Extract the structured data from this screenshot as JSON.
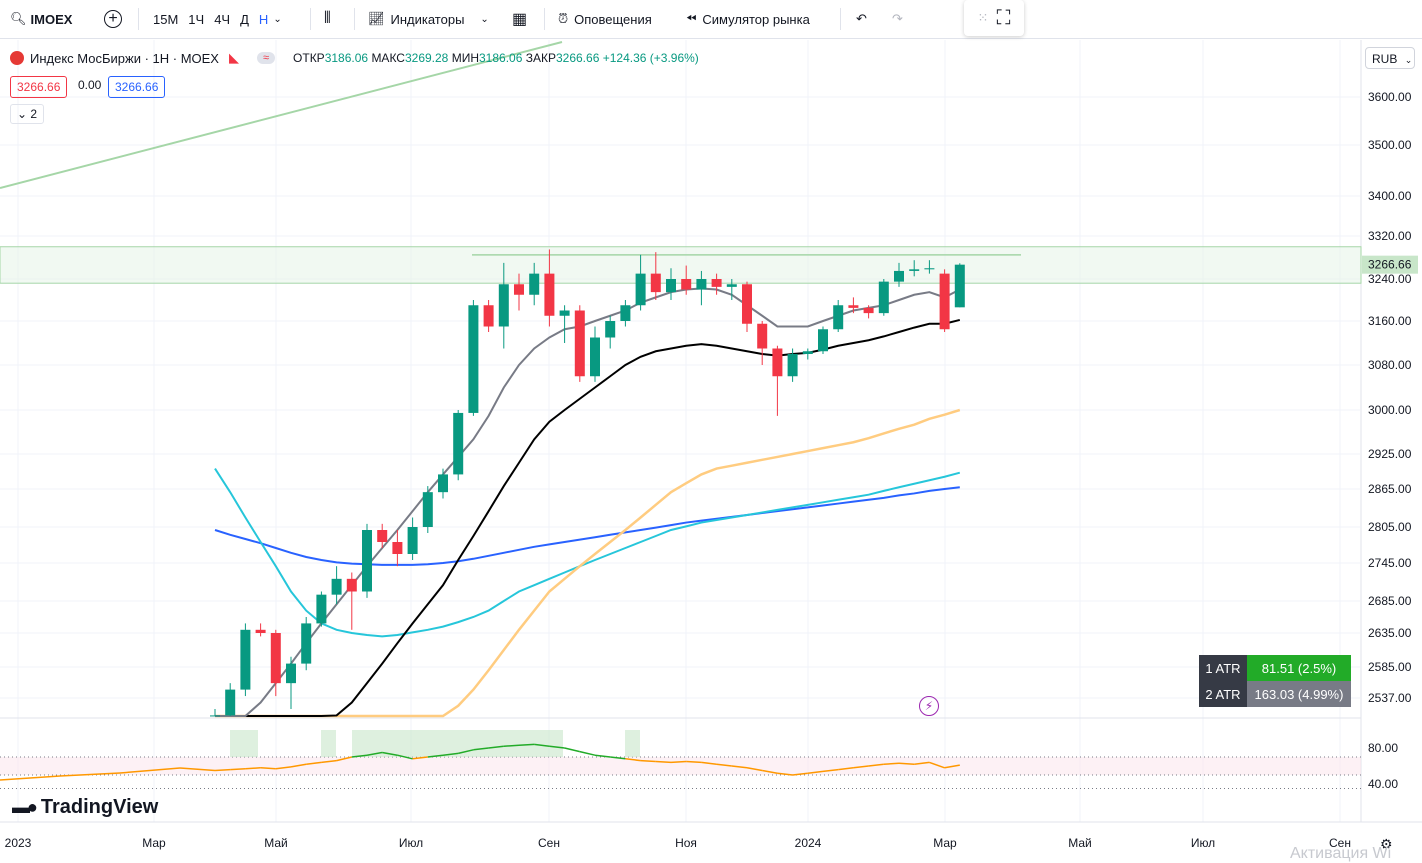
{
  "toolbar": {
    "symbol": "IMOEX",
    "intervals": [
      "15М",
      "1Ч",
      "4Ч",
      "Д",
      "Н"
    ],
    "active_interval": "Н",
    "indicators_label": "Индикаторы",
    "alerts_label": "Оповещения",
    "replay_label": "Симулятор рынка"
  },
  "legend": {
    "title": "Индекс МосБиржи · 1Н · MOEX",
    "open_label": "ОТКР",
    "open": "3186.06",
    "high_label": "МАКС",
    "high": "3269.28",
    "low_label": "МИН",
    "low": "3186.06",
    "close_label": "ЗАКР",
    "close": "3266.66",
    "change": "+124.36 (+3.96%)",
    "sell_price": "3266.66",
    "spread": "0.00",
    "buy_price": "3266.66",
    "indicators_count": "2"
  },
  "currency": "RUB",
  "atr": [
    {
      "label": "1 ATR",
      "value": "81.51 (2.5%)",
      "color": "#22ab28"
    },
    {
      "label": "2 ATR",
      "value": "163.03 (4.99%)",
      "color": "#787b86"
    }
  ],
  "branding": "TradingView",
  "watermark": "Активация Wi",
  "chart_data": {
    "type": "candlestick",
    "y_ticks": [
      "3600.00",
      "3500.00",
      "3400.00",
      "3320.00",
      "3240.00",
      "3160.00",
      "3080.00",
      "3000.00",
      "2925.00",
      "2865.00",
      "2805.00",
      "2745.00",
      "2685.00",
      "2635.00",
      "2585.00",
      "2537.00"
    ],
    "y_tick_values": [
      3600,
      3500,
      3400,
      3320,
      3240,
      3160,
      3080,
      3000,
      2925,
      2865,
      2805,
      2745,
      2685,
      2635,
      2585,
      2537
    ],
    "x_ticks": [
      "2023",
      "Мар",
      "Май",
      "Июл",
      "Сен",
      "Ноя",
      "2024",
      "Мар",
      "Май",
      "Июл",
      "Сен"
    ],
    "last_price_label": "3266.66",
    "zone": [
      3232,
      3300
    ],
    "resistance": 3285,
    "candles": [
      [
        2480,
        2520,
        2470,
        2510
      ],
      [
        2510,
        2560,
        2505,
        2550
      ],
      [
        2550,
        2650,
        2540,
        2640
      ],
      [
        2640,
        2650,
        2630,
        2635
      ],
      [
        2635,
        2640,
        2540,
        2560
      ],
      [
        2560,
        2600,
        2520,
        2590
      ],
      [
        2590,
        2660,
        2580,
        2650
      ],
      [
        2650,
        2700,
        2645,
        2695
      ],
      [
        2695,
        2740,
        2680,
        2720
      ],
      [
        2720,
        2730,
        2640,
        2700
      ],
      [
        2700,
        2810,
        2690,
        2800
      ],
      [
        2800,
        2810,
        2770,
        2780
      ],
      [
        2780,
        2800,
        2740,
        2760
      ],
      [
        2760,
        2820,
        2750,
        2805
      ],
      [
        2805,
        2870,
        2795,
        2860
      ],
      [
        2860,
        2900,
        2850,
        2890
      ],
      [
        2890,
        3000,
        2880,
        2995
      ],
      [
        2995,
        3200,
        2990,
        3190
      ],
      [
        3190,
        3200,
        3140,
        3150
      ],
      [
        3150,
        3270,
        3110,
        3230
      ],
      [
        3230,
        3250,
        3180,
        3210
      ],
      [
        3210,
        3270,
        3190,
        3250
      ],
      [
        3250,
        3295,
        3150,
        3170
      ],
      [
        3170,
        3190,
        3120,
        3180
      ],
      [
        3180,
        3190,
        3050,
        3060
      ],
      [
        3060,
        3150,
        3050,
        3130
      ],
      [
        3130,
        3170,
        3110,
        3160
      ],
      [
        3160,
        3200,
        3150,
        3190
      ],
      [
        3190,
        3285,
        3180,
        3250
      ],
      [
        3250,
        3290,
        3200,
        3215
      ],
      [
        3215,
        3260,
        3200,
        3240
      ],
      [
        3240,
        3265,
        3210,
        3220
      ],
      [
        3220,
        3255,
        3190,
        3240
      ],
      [
        3240,
        3250,
        3210,
        3225
      ],
      [
        3225,
        3240,
        3200,
        3230
      ],
      [
        3230,
        3235,
        3140,
        3155
      ],
      [
        3155,
        3160,
        3080,
        3110
      ],
      [
        3110,
        3115,
        2990,
        3060
      ],
      [
        3060,
        3110,
        3050,
        3100
      ],
      [
        3100,
        3110,
        3090,
        3105
      ],
      [
        3105,
        3150,
        3100,
        3145
      ],
      [
        3145,
        3200,
        3140,
        3190
      ],
      [
        3190,
        3205,
        3175,
        3185
      ],
      [
        3185,
        3190,
        3165,
        3175
      ],
      [
        3175,
        3240,
        3170,
        3235
      ],
      [
        3235,
        3270,
        3225,
        3255
      ],
      [
        3255,
        3275,
        3245,
        3258
      ],
      [
        3258,
        3275,
        3250,
        3260
      ],
      [
        3250,
        3258,
        3140,
        3145
      ],
      [
        3186.06,
        3269.28,
        3186.06,
        3266.66
      ]
    ],
    "ma_fast": [
      2450,
      2470,
      2500,
      2530,
      2560,
      2590,
      2620,
      2650,
      2680,
      2710,
      2740,
      2770,
      2800,
      2830,
      2860,
      2890,
      2920,
      2950,
      2990,
      3040,
      3080,
      3110,
      3130,
      3145,
      3150,
      3160,
      3170,
      3180,
      3195,
      3205,
      3215,
      3220,
      3222,
      3220,
      3210,
      3190,
      3170,
      3150,
      3150,
      3150,
      3160,
      3170,
      3180,
      3185,
      3190,
      3200,
      3210,
      3215,
      3205,
      3220
    ],
    "ma_slow": [
      2400,
      2410,
      2420,
      2430,
      2440,
      2455,
      2470,
      2490,
      2510,
      2530,
      2560,
      2590,
      2620,
      2650,
      2680,
      2710,
      2750,
      2790,
      2830,
      2870,
      2910,
      2950,
      2980,
      3000,
      3020,
      3040,
      3060,
      3080,
      3095,
      3105,
      3110,
      3115,
      3118,
      3115,
      3110,
      3105,
      3100,
      3097,
      3100,
      3102,
      3108,
      3115,
      3120,
      3125,
      3132,
      3140,
      3148,
      3155,
      3155,
      3162
    ],
    "ma_50": [
      2300,
      2310,
      2320,
      2330,
      2340,
      2350,
      2360,
      2370,
      2380,
      2395,
      2410,
      2425,
      2440,
      2460,
      2480,
      2500,
      2525,
      2550,
      2580,
      2610,
      2640,
      2670,
      2700,
      2720,
      2740,
      2760,
      2780,
      2800,
      2820,
      2840,
      2860,
      2875,
      2890,
      2900,
      2905,
      2910,
      2915,
      2920,
      2925,
      2930,
      2935,
      2940,
      2945,
      2952,
      2960,
      2968,
      2975,
      2985,
      2992,
      3000
    ],
    "ma_100": [
      2900,
      2860,
      2820,
      2780,
      2740,
      2700,
      2670,
      2650,
      2640,
      2635,
      2632,
      2630,
      2632,
      2636,
      2640,
      2645,
      2652,
      2660,
      2670,
      2685,
      2700,
      2710,
      2720,
      2730,
      2740,
      2750,
      2760,
      2770,
      2780,
      2790,
      2800,
      2806,
      2812,
      2816,
      2820,
      2824,
      2828,
      2832,
      2836,
      2840,
      2844,
      2848,
      2852,
      2856,
      2862,
      2868,
      2874,
      2880,
      2886,
      2893
    ],
    "ma_200": [
      2800,
      2792,
      2785,
      2778,
      2770,
      2762,
      2755,
      2750,
      2746,
      2744,
      2743,
      2742,
      2742,
      2742,
      2743,
      2745,
      2748,
      2752,
      2757,
      2762,
      2767,
      2772,
      2776,
      2780,
      2784,
      2788,
      2792,
      2796,
      2800,
      2804,
      2808,
      2812,
      2815,
      2818,
      2821,
      2824,
      2827,
      2830,
      2833,
      2836,
      2839,
      2842,
      2845,
      2848,
      2851,
      2855,
      2858,
      2862,
      2865,
      2868
    ],
    "rsi_ticks": [
      "80.00",
      "40.00"
    ],
    "rsi": [
      55,
      56,
      57,
      58,
      57,
      59,
      62,
      64,
      66,
      70,
      72,
      75,
      72,
      68,
      70,
      72,
      74,
      78,
      80,
      82,
      83,
      84,
      82,
      80,
      76,
      72,
      70,
      68,
      66,
      65,
      64,
      65,
      64,
      62,
      60,
      58,
      55,
      52,
      50,
      52,
      54,
      56,
      58,
      60,
      62,
      63,
      62,
      64,
      58,
      61
    ],
    "colors": {
      "up": "#089981",
      "down": "#f23645",
      "ma_fast": "#787b86",
      "ma_slow": "#000000",
      "ma_50": "#ffcc80",
      "ma_100": "#26c6da",
      "ma_200": "#2962ff",
      "trend": "#a5d6a7"
    }
  }
}
